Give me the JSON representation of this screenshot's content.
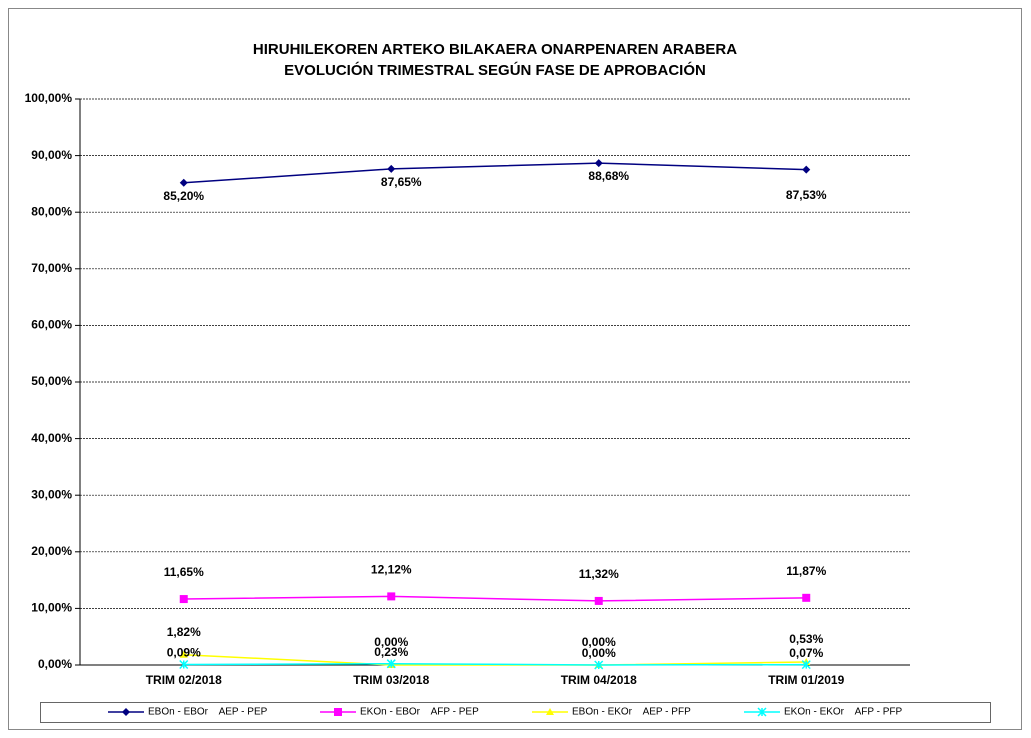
{
  "chart_data": {
    "type": "line",
    "title": "HIRUHILEKOREN ARTEKO BILAKAERA ONARPENAREN ARABERA",
    "subtitle": "EVOLUCIÓN TRIMESTRAL SEGÚN FASE DE APROBACIÓN",
    "categories": [
      "TRIM 02/2018",
      "TRIM 03/2018",
      "TRIM 04/2018",
      "TRIM 01/2019"
    ],
    "series": [
      {
        "name": "EBOn - EBOr    AEP - PEP",
        "color": "#000080",
        "marker": "diamond",
        "values": [
          85.2,
          87.65,
          88.68,
          87.53
        ],
        "value_labels": [
          "85,20%",
          "87,65%",
          "88,68%",
          "87,53%"
        ]
      },
      {
        "name": "EKOn - EBOr    AFP - PEP",
        "color": "#ff00ff",
        "marker": "square",
        "values": [
          11.65,
          12.12,
          11.32,
          11.87
        ],
        "value_labels": [
          "11,65%",
          "12,12%",
          "11,32%",
          "11,87%"
        ]
      },
      {
        "name": "EBOn - EKOr    AEP - PFP",
        "color": "#ffff00",
        "marker": "triangle",
        "values": [
          1.82,
          0.0,
          0.0,
          0.53
        ],
        "value_labels": [
          "1,82%",
          "0,00%",
          "0,00%",
          "0,53%"
        ]
      },
      {
        "name": "EKOn - EKOr    AFP - PFP",
        "color": "#00ffff",
        "marker": "x",
        "values": [
          0.09,
          0.23,
          0.0,
          0.07
        ],
        "value_labels": [
          "0,09%",
          "0,23%",
          "0,00%",
          "0,07%"
        ]
      }
    ],
    "ylim": [
      0,
      100
    ],
    "yticks": [
      {
        "value": 0,
        "label": "0,00%"
      },
      {
        "value": 10,
        "label": "10,00%"
      },
      {
        "value": 20,
        "label": "20,00%"
      },
      {
        "value": 30,
        "label": "30,00%"
      },
      {
        "value": 40,
        "label": "40,00%"
      },
      {
        "value": 50,
        "label": "50,00%"
      },
      {
        "value": 60,
        "label": "60,00%"
      },
      {
        "value": 70,
        "label": "70,00%"
      },
      {
        "value": 80,
        "label": "80,00%"
      },
      {
        "value": 90,
        "label": "90,00%"
      },
      {
        "value": 100,
        "label": "100,00%"
      }
    ],
    "grid": true,
    "legend": "bottom"
  }
}
